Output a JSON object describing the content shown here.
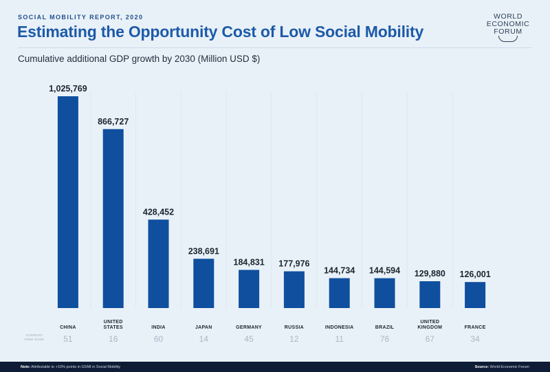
{
  "header": {
    "eyebrow": "SOCIAL MOBILITY REPORT, 2020",
    "title": "Estimating the Opportunity Cost of Low Social Mobility",
    "logo_lines": [
      "WORLD",
      "ECONOMIC",
      "FORUM"
    ]
  },
  "chart_data": {
    "type": "bar",
    "title": "Cumulative additional GDP growth by 2030 (Million USD $)",
    "categories": [
      "CHINA",
      "UNITED STATES",
      "INDIA",
      "JAPAN",
      "GERMANY",
      "RUSSIA",
      "INDONESIA",
      "BRAZIL",
      "UNITED KINGDOM",
      "FRANCE"
    ],
    "category_lines": [
      [
        "CHINA"
      ],
      [
        "UNITED",
        "STATES"
      ],
      [
        "INDIA"
      ],
      [
        "JAPAN"
      ],
      [
        "GERMANY"
      ],
      [
        "RUSSIA"
      ],
      [
        "INDONESIA"
      ],
      [
        "BRAZIL"
      ],
      [
        "UNITED",
        "KINGDOM"
      ],
      [
        "FRANCE"
      ]
    ],
    "values": [
      1025769,
      866727,
      428452,
      238691,
      184831,
      177976,
      144734,
      144594,
      129880,
      126001
    ],
    "value_labels": [
      "1,025,769",
      "866,727",
      "428,452",
      "238,691",
      "184,831",
      "177,976",
      "144,734",
      "144,594",
      "129,880",
      "126,001"
    ],
    "secondary_label": [
      "CURRENT",
      "GSMI RANK"
    ],
    "gsmi_rank": [
      51,
      16,
      60,
      14,
      45,
      12,
      11,
      76,
      67,
      34
    ],
    "ylim": [
      0,
      1025769
    ],
    "bar_color": "#0f4f9e"
  },
  "footer": {
    "note_label": "Note:",
    "note_text": " Attributable to +10% points in GSMI in Social Mobility",
    "source_label": "Source:",
    "source_text": " World Economic Forum"
  }
}
